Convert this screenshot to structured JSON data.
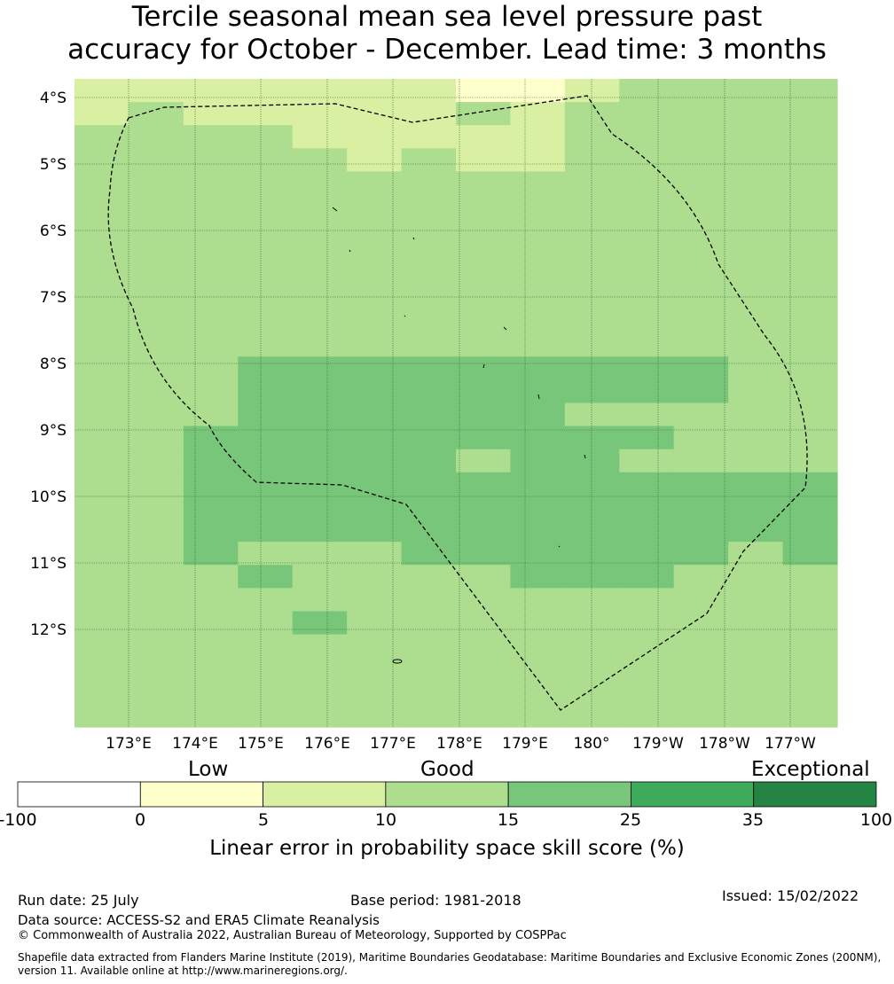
{
  "title_line1": "Tercile seasonal mean sea level pressure past",
  "title_line2": "accuracy for October - December. Lead time: 3 months",
  "map": {
    "lat_labels": [
      "4°S",
      "5°S",
      "6°S",
      "7°S",
      "8°S",
      "9°S",
      "10°S",
      "11°S",
      "12°S"
    ],
    "lon_labels": [
      "173°E",
      "174°E",
      "175°E",
      "176°E",
      "177°E",
      "178°E",
      "179°E",
      "180°",
      "179°W",
      "178°W",
      "177°W"
    ],
    "skill_grid": [
      [
        2,
        2,
        2,
        2,
        2,
        2,
        2,
        1,
        1,
        2,
        3,
        3,
        3,
        3
      ],
      [
        2,
        3,
        2,
        2,
        2,
        2,
        2,
        3,
        2,
        3,
        3,
        3,
        3,
        3
      ],
      [
        3,
        3,
        3,
        3,
        2,
        2,
        2,
        2,
        2,
        3,
        3,
        3,
        3,
        3
      ],
      [
        3,
        3,
        3,
        3,
        3,
        2,
        3,
        2,
        2,
        3,
        3,
        3,
        3,
        3
      ],
      [
        3,
        3,
        3,
        3,
        3,
        3,
        3,
        3,
        3,
        3,
        3,
        3,
        3,
        3
      ],
      [
        3,
        3,
        3,
        3,
        3,
        3,
        3,
        3,
        3,
        3,
        3,
        3,
        3,
        3
      ],
      [
        3,
        3,
        3,
        3,
        3,
        3,
        3,
        3,
        3,
        3,
        3,
        3,
        3,
        3
      ],
      [
        3,
        3,
        3,
        3,
        3,
        3,
        3,
        3,
        3,
        3,
        3,
        3,
        3,
        3
      ],
      [
        3,
        3,
        3,
        3,
        3,
        3,
        3,
        3,
        3,
        3,
        3,
        3,
        3,
        3
      ],
      [
        3,
        3,
        3,
        3,
        3,
        3,
        3,
        3,
        3,
        3,
        3,
        3,
        3,
        3
      ],
      [
        3,
        3,
        3,
        3,
        3,
        3,
        3,
        3,
        3,
        3,
        3,
        3,
        3,
        3
      ],
      [
        3,
        3,
        3,
        3,
        3,
        3,
        3,
        3,
        3,
        3,
        3,
        3,
        3,
        3
      ],
      [
        3,
        3,
        3,
        4,
        4,
        4,
        4,
        4,
        4,
        4,
        4,
        4,
        3,
        3
      ],
      [
        3,
        3,
        3,
        4,
        4,
        4,
        4,
        4,
        4,
        4,
        4,
        4,
        3,
        3
      ],
      [
        3,
        3,
        3,
        4,
        4,
        4,
        4,
        4,
        4,
        3,
        3,
        3,
        3,
        3
      ],
      [
        3,
        3,
        4,
        4,
        4,
        4,
        4,
        4,
        4,
        4,
        4,
        3,
        3,
        3
      ],
      [
        3,
        3,
        4,
        4,
        4,
        4,
        4,
        3,
        4,
        4,
        3,
        3,
        3,
        3
      ],
      [
        3,
        3,
        4,
        4,
        4,
        4,
        4,
        4,
        4,
        4,
        4,
        4,
        4,
        4
      ],
      [
        3,
        3,
        4,
        4,
        4,
        4,
        4,
        4,
        4,
        4,
        4,
        4,
        4,
        4
      ],
      [
        3,
        3,
        4,
        4,
        4,
        4,
        4,
        4,
        4,
        4,
        4,
        4,
        4,
        4
      ],
      [
        3,
        3,
        4,
        3,
        3,
        3,
        4,
        4,
        4,
        4,
        4,
        4,
        3,
        4
      ],
      [
        3,
        3,
        3,
        4,
        3,
        3,
        3,
        3,
        4,
        4,
        4,
        3,
        3,
        3
      ],
      [
        3,
        3,
        3,
        3,
        3,
        3,
        3,
        3,
        3,
        3,
        3,
        3,
        3,
        3
      ],
      [
        3,
        3,
        3,
        3,
        4,
        3,
        3,
        3,
        3,
        3,
        3,
        3,
        3,
        3
      ],
      [
        3,
        3,
        3,
        3,
        3,
        3,
        3,
        3,
        3,
        3,
        3,
        3,
        3,
        3
      ],
      [
        3,
        3,
        3,
        3,
        3,
        3,
        3,
        3,
        3,
        3,
        3,
        3,
        3,
        3
      ],
      [
        3,
        3,
        3,
        3,
        3,
        3,
        3,
        3,
        3,
        3,
        3,
        3,
        3,
        3
      ],
      [
        3,
        3,
        3,
        3,
        3,
        3,
        3,
        3,
        3,
        3,
        3,
        3,
        3,
        3
      ]
    ]
  },
  "colorbar": {
    "category_labels": [
      "Low",
      "Good",
      "Exceptional"
    ],
    "tick_labels": [
      "-100",
      "0",
      "5",
      "10",
      "15",
      "25",
      "35",
      "100"
    ],
    "colors": [
      "#ffffff",
      "#ffffcc",
      "#d9f0a3",
      "#addd8e",
      "#78c679",
      "#41ab5d",
      "#238443"
    ],
    "caption": "Linear error in probability space skill score (%)"
  },
  "footer": {
    "run_date": "Run date: 25 July",
    "base_period": "Base period: 1981-2018",
    "issued": "Issued: 15/02/2022",
    "data_source": "Data source: ACCESS-S2 and ERA5 Climate Reanalysis",
    "copyright": "© Commonwealth of Australia 2022, Australian Bureau of Meteorology, Supported by COSPPac",
    "shapefile_line1": "Shapefile data extracted from Flanders Marine Institute (2019), Maritime Boundaries Geodatabase: Maritime Boundaries and Exclusive Economic Zones (200NM),",
    "shapefile_line2": "version 11. Available online at http://www.marineregions.org/."
  }
}
